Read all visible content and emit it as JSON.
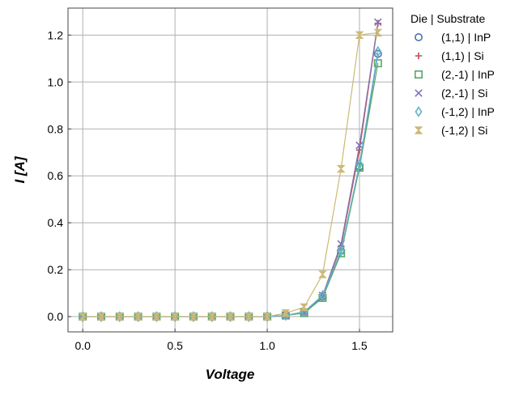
{
  "chart_data": {
    "type": "line",
    "xlabel": "Voltage",
    "ylabel": "I [A]",
    "xlim": [
      -0.08,
      1.68
    ],
    "ylim": [
      -0.065,
      1.315
    ],
    "xticks": [
      0.0,
      0.5,
      1.0,
      1.5
    ],
    "xtick_labels": [
      "0.0",
      "0.5",
      "1.0",
      "1.5"
    ],
    "yticks": [
      0.0,
      0.2,
      0.4,
      0.6,
      0.8,
      1.0,
      1.2
    ],
    "ytick_labels": [
      "0.0",
      "0.2",
      "0.4",
      "0.6",
      "0.8",
      "1.0",
      "1.2"
    ],
    "grid": true,
    "legend": {
      "title": "Die | Substrate",
      "placement": "outside-right"
    },
    "x": [
      0.0,
      0.1,
      0.2,
      0.3,
      0.4,
      0.5,
      0.6,
      0.7,
      0.8,
      0.9,
      1.0,
      1.1,
      1.2,
      1.3,
      1.4,
      1.5,
      1.6
    ],
    "series": [
      {
        "name": "(1,1) | InP",
        "color": "#4c72b0",
        "marker": "circle",
        "values": [
          0,
          0,
          0,
          0,
          0,
          0,
          0,
          0,
          0,
          0,
          0,
          0.005,
          0.02,
          0.085,
          0.28,
          0.64,
          1.12
        ]
      },
      {
        "name": "(1,1) | Si",
        "color": "#c44e52",
        "marker": "plus",
        "values": [
          0,
          0,
          0,
          0,
          0,
          0,
          0,
          0,
          0,
          0,
          0,
          0.005,
          0.02,
          0.09,
          0.3,
          0.71,
          1.25
        ]
      },
      {
        "name": "(2,-1) | InP",
        "color": "#55a868",
        "marker": "square",
        "values": [
          0,
          0,
          0,
          0,
          0,
          0,
          0,
          0,
          0,
          0,
          0,
          0.005,
          0.015,
          0.08,
          0.27,
          0.635,
          1.08
        ]
      },
      {
        "name": "(2,-1) | Si",
        "color": "#8172b2",
        "marker": "x",
        "values": [
          0,
          0,
          0,
          0,
          0,
          0,
          0,
          0,
          0,
          0,
          0,
          0.005,
          0.02,
          0.09,
          0.31,
          0.73,
          1.255
        ]
      },
      {
        "name": "(-1,2) | InP",
        "color": "#64b5cd",
        "marker": "diamond",
        "values": [
          0,
          0,
          0,
          0,
          0,
          0,
          0,
          0,
          0,
          0,
          0,
          0.005,
          0.02,
          0.09,
          0.28,
          0.65,
          1.13
        ]
      },
      {
        "name": "(-1,2) | Si",
        "color": "#ccb974",
        "marker": "hourglass",
        "values": [
          0,
          0,
          0,
          0,
          0,
          0,
          0,
          0,
          0,
          0,
          0,
          0.015,
          0.04,
          0.18,
          0.63,
          1.2,
          1.21
        ]
      }
    ]
  }
}
